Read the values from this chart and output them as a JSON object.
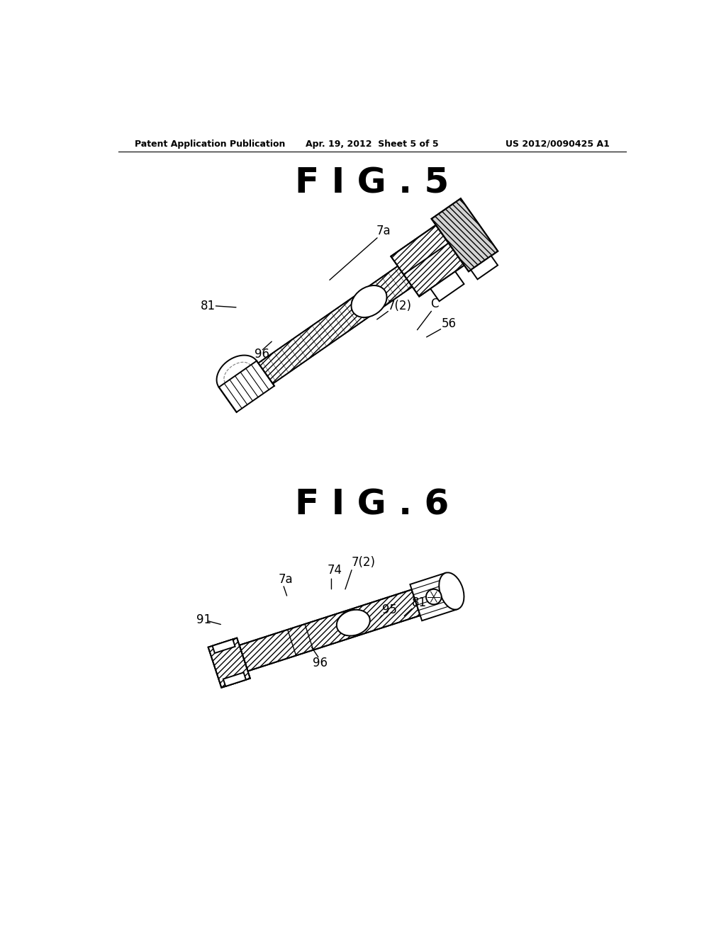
{
  "background_color": "#ffffff",
  "header_left": "Patent Application Publication",
  "header_center": "Apr. 19, 2012  Sheet 5 of 5",
  "header_right": "US 2012/0090425 A1",
  "fig5_title": "F I G . 5",
  "fig6_title": "F I G . 6",
  "page_width": 10.24,
  "page_height": 13.2,
  "dpi": 100
}
